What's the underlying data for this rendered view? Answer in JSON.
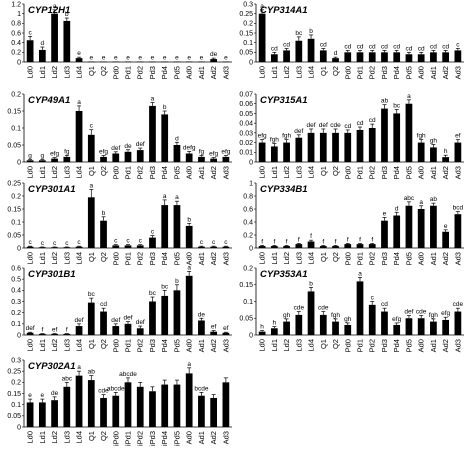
{
  "chart_data": [
    {
      "type": "bar",
      "title": "CYP12H1",
      "categories": [
        "Ld0",
        "Ld1",
        "Ld2",
        "Ld3",
        "Ld4",
        "Q1",
        "Q2",
        "Pd0",
        "Pd1",
        "Pd2",
        "Pd3",
        "Pd4",
        "Pd5",
        "Ad0",
        "Ad1",
        "Ad2",
        "Ad3"
      ],
      "ylim": [
        0,
        1.2
      ],
      "yticks": [
        "0",
        "0.2",
        "0.4",
        "0.6",
        "0.8",
        "1",
        "1.2"
      ],
      "values": [
        0.45,
        0.25,
        1.0,
        0.85,
        0.08,
        0.01,
        0.01,
        0.01,
        0.01,
        0.01,
        0.01,
        0.01,
        0.01,
        0.01,
        0.01,
        0.06,
        0.01
      ],
      "errors": [
        0.08,
        0.06,
        0.08,
        0.06,
        0.02,
        0.0,
        0.0,
        0.0,
        0.0,
        0.0,
        0.0,
        0.0,
        0.0,
        0.0,
        0.0,
        0.02,
        0.0
      ],
      "labels": [
        "c",
        "d",
        "a",
        "b",
        "e",
        "e",
        "e",
        "e",
        "e",
        "e",
        "e",
        "e",
        "e",
        "e",
        "e",
        "de",
        "e"
      ]
    },
    {
      "type": "bar",
      "title": "CYP314A1",
      "categories": [
        "Ld0",
        "Ld1",
        "Ld2",
        "Ld3",
        "Ld4",
        "Q1",
        "Q2",
        "Pd0",
        "Pd1",
        "Pd2",
        "Pd3",
        "Pd4",
        "Pd5",
        "Ad0",
        "Ad1",
        "Ad2",
        "Ad3"
      ],
      "ylim": [
        0,
        0.3
      ],
      "yticks": [
        "0",
        "0.05",
        "0.1",
        "0.15",
        "0.2",
        "0.25",
        "0.3"
      ],
      "values": [
        0.25,
        0.04,
        0.06,
        0.11,
        0.12,
        0.06,
        0.02,
        0.05,
        0.05,
        0.05,
        0.05,
        0.05,
        0.04,
        0.04,
        0.05,
        0.05,
        0.06
      ],
      "errors": [
        0.02,
        0.01,
        0.01,
        0.02,
        0.02,
        0.01,
        0.005,
        0.01,
        0.01,
        0.01,
        0.01,
        0.01,
        0.01,
        0.01,
        0.01,
        0.01,
        0.01
      ],
      "labels": [
        "a",
        "cd",
        "cd",
        "bc",
        "b",
        "cd",
        "d",
        "cd",
        "cd",
        "cd",
        "cd",
        "cd",
        "cd",
        "cd",
        "cd",
        "cd",
        "c"
      ]
    },
    {
      "type": "bar",
      "title": "CYP49A1",
      "categories": [
        "Ld0",
        "Ld1",
        "Ld2",
        "Ld3",
        "Ld4",
        "Q1",
        "Q2",
        "Pd0",
        "Pd1",
        "Pd2",
        "Pd3",
        "Pd4",
        "Pd5",
        "Ad0",
        "Ad1",
        "Ad2",
        "Ad3"
      ],
      "ylim": [
        0,
        0.2
      ],
      "yticks": [
        "0",
        "0.05",
        "0.1",
        "0.15",
        "0.2"
      ],
      "values": [
        0.005,
        0.005,
        0.01,
        0.015,
        0.15,
        0.08,
        0.015,
        0.025,
        0.03,
        0.035,
        0.165,
        0.14,
        0.05,
        0.025,
        0.015,
        0.01,
        0.015
      ],
      "errors": [
        0.002,
        0.002,
        0.003,
        0.004,
        0.015,
        0.015,
        0.004,
        0.005,
        0.006,
        0.006,
        0.01,
        0.01,
        0.008,
        0.006,
        0.004,
        0.003,
        0.004
      ],
      "labels": [
        "g",
        "g",
        "efg",
        "fg",
        "a",
        "c",
        "efg",
        "def",
        "de",
        "def",
        "a",
        "b",
        "d",
        "defg",
        "fg",
        "efg",
        "efg"
      ]
    },
    {
      "type": "bar",
      "title": "CYP315A1",
      "categories": [
        "Ld0",
        "Ld1",
        "Ld2",
        "Ld3",
        "Ld4",
        "Q1",
        "Q2",
        "Pd0",
        "Pd1",
        "Pd2",
        "Pd3",
        "Pd4",
        "Pd5",
        "Ad0",
        "Ad1",
        "Ad2",
        "Ad3"
      ],
      "ylim": [
        0,
        0.07
      ],
      "yticks": [
        "0",
        "0.01",
        "0.02",
        "0.03",
        "0.04",
        "0.05",
        "0.06",
        "0.07"
      ],
      "values": [
        0.02,
        0.016,
        0.02,
        0.025,
        0.03,
        0.03,
        0.03,
        0.03,
        0.033,
        0.035,
        0.055,
        0.05,
        0.06,
        0.02,
        0.015,
        0.005,
        0.02
      ],
      "errors": [
        0.003,
        0.003,
        0.003,
        0.003,
        0.004,
        0.004,
        0.004,
        0.003,
        0.003,
        0.004,
        0.004,
        0.004,
        0.004,
        0.003,
        0.003,
        0.002,
        0.003
      ],
      "labels": [
        "efg",
        "fgh",
        "fgh",
        "def",
        "def",
        "def",
        "cde",
        "cd",
        "cd",
        "cd",
        "ab",
        "bc",
        "a",
        "fgh",
        "gh",
        "h",
        "ef"
      ]
    },
    {
      "type": "bar",
      "title": "CYP301A1",
      "categories": [
        "Ld0",
        "Ld1",
        "Ld2",
        "Ld3",
        "Ld4",
        "Q1",
        "Q2",
        "Pd0",
        "Pd1",
        "Pd2",
        "Pd3",
        "Pd4",
        "Pd5",
        "Ad0",
        "Ad1",
        "Ad2",
        "Ad3"
      ],
      "ylim": [
        0,
        0.25
      ],
      "yticks": [
        "0",
        "0.05",
        "0.1",
        "0.15",
        "0.2",
        "0.25"
      ],
      "values": [
        0.005,
        0.003,
        0.003,
        0.003,
        0.005,
        0.195,
        0.105,
        0.01,
        0.01,
        0.01,
        0.04,
        0.165,
        0.165,
        0.085,
        0.005,
        0.005,
        0.005
      ],
      "errors": [
        0.002,
        0.001,
        0.001,
        0.001,
        0.002,
        0.03,
        0.015,
        0.003,
        0.003,
        0.003,
        0.008,
        0.02,
        0.015,
        0.01,
        0.002,
        0.002,
        0.002
      ],
      "labels": [
        "c",
        "c",
        "c",
        "c",
        "c",
        "a",
        "b",
        "c",
        "c",
        "c",
        "c",
        "a",
        "a",
        "b",
        "c",
        "c",
        "c"
      ]
    },
    {
      "type": "bar",
      "title": "CYP334B1",
      "categories": [
        "Ld0",
        "Ld1",
        "Ld2",
        "Ld3",
        "Ld4",
        "Q1",
        "Q2",
        "Pd0",
        "Pd1",
        "Pd2",
        "Pd3",
        "Pd4",
        "Pd5",
        "Ad0",
        "Ad1",
        "Ad2",
        "Ad3"
      ],
      "ylim": [
        0,
        1
      ],
      "yticks": [
        "0",
        "0.2",
        "0.4",
        "0.6",
        "0.8",
        "1"
      ],
      "values": [
        0.03,
        0.03,
        0.03,
        0.06,
        0.1,
        0.03,
        0.03,
        0.06,
        0.06,
        0.06,
        0.42,
        0.5,
        0.65,
        0.6,
        0.65,
        0.25,
        0.52
      ],
      "errors": [
        0.01,
        0.01,
        0.01,
        0.01,
        0.02,
        0.01,
        0.01,
        0.01,
        0.01,
        0.01,
        0.05,
        0.05,
        0.06,
        0.05,
        0.04,
        0.03,
        0.04
      ],
      "labels": [
        "f",
        "f",
        "f",
        "f",
        "f",
        "f",
        "f",
        "f",
        "f",
        "f",
        "e",
        "d",
        "abc",
        "a",
        "ab",
        "e",
        "bcd"
      ]
    },
    {
      "type": "bar",
      "title": "CYP301B1",
      "categories": [
        "Ld0",
        "Ld1",
        "Ld2",
        "Ld3",
        "Ld4",
        "Q1",
        "Q2",
        "Pd0",
        "Pd1",
        "Pd2",
        "Pd3",
        "Pd4",
        "Pd5",
        "Ad0",
        "Ad1",
        "Ad2",
        "Ad3"
      ],
      "ylim": [
        0,
        0.6
      ],
      "yticks": [
        "0",
        "0.1",
        "0.2",
        "0.3",
        "0.4",
        "0.5",
        "0.6"
      ],
      "values": [
        0.02,
        0.01,
        0.01,
        0.01,
        0.08,
        0.29,
        0.21,
        0.08,
        0.1,
        0.06,
        0.3,
        0.35,
        0.4,
        0.53,
        0.13,
        0.03,
        0.02
      ],
      "errors": [
        0.005,
        0.003,
        0.003,
        0.003,
        0.02,
        0.04,
        0.03,
        0.02,
        0.02,
        0.02,
        0.04,
        0.05,
        0.05,
        0.04,
        0.02,
        0.01,
        0.005
      ],
      "labels": [
        "def",
        "f",
        "ef",
        "f",
        "def",
        "bc",
        "cd",
        "def",
        "def",
        "def",
        "bc",
        "bc",
        "b",
        "a",
        "de",
        "ef",
        "ef"
      ]
    },
    {
      "type": "bar",
      "title": "CYP353A1",
      "categories": [
        "Ld0",
        "Ld1",
        "Ld2",
        "Ld3",
        "Ld4",
        "Q1",
        "Q2",
        "Pd0",
        "Pd1",
        "Pd2",
        "Pd3",
        "Pd4",
        "Pd5",
        "Ad0",
        "Ad1",
        "Ad2",
        "Ad3"
      ],
      "ylim": [
        0,
        0.2
      ],
      "yticks": [
        "0",
        "0.05",
        "0.1",
        "0.15",
        "0.2"
      ],
      "values": [
        0.01,
        0.02,
        0.04,
        0.06,
        0.13,
        0.06,
        0.04,
        0.03,
        0.16,
        0.09,
        0.07,
        0.03,
        0.05,
        0.05,
        0.04,
        0.045,
        0.07
      ],
      "errors": [
        0.003,
        0.005,
        0.008,
        0.01,
        0.012,
        0.01,
        0.008,
        0.006,
        0.012,
        0.01,
        0.01,
        0.006,
        0.008,
        0.008,
        0.008,
        0.008,
        0.01
      ],
      "labels": [
        "h",
        "h",
        "gh",
        "cde",
        "b",
        "cde",
        "fgh",
        "gh",
        "a",
        "c",
        "cd",
        "efg",
        "def",
        "cde",
        "fgh",
        "efg",
        "cde"
      ]
    },
    {
      "type": "bar",
      "title": "CYP302A1",
      "categories": [
        "Ld0",
        "Ld1",
        "Ld2",
        "Ld3",
        "Ld4",
        "Q1",
        "Q2",
        "iPd0",
        "iPd1",
        "iPd2",
        "iPd3",
        "iPd4",
        "iPd5",
        "Ad0",
        "Ad1",
        "Ad2",
        "Ad3"
      ],
      "ylim": [
        0,
        0.3
      ],
      "yticks": [
        "0",
        "0.05",
        "0.1",
        "0.15",
        "0.2",
        "0.25",
        "0.3"
      ],
      "values": [
        0.11,
        0.11,
        0.12,
        0.18,
        0.23,
        0.21,
        0.13,
        0.14,
        0.2,
        0.18,
        0.16,
        0.19,
        0.19,
        0.24,
        0.14,
        0.13,
        0.2
      ],
      "errors": [
        0.015,
        0.015,
        0.015,
        0.02,
        0.02,
        0.02,
        0.015,
        0.015,
        0.02,
        0.02,
        0.02,
        0.02,
        0.02,
        0.025,
        0.015,
        0.015,
        0.02
      ],
      "labels": [
        "e",
        "e",
        "de",
        "abc",
        "a",
        "ab",
        "cde",
        "abcde",
        "abcde",
        "",
        "",
        "",
        "",
        "a",
        "bcde",
        "",
        ""
      ]
    }
  ]
}
